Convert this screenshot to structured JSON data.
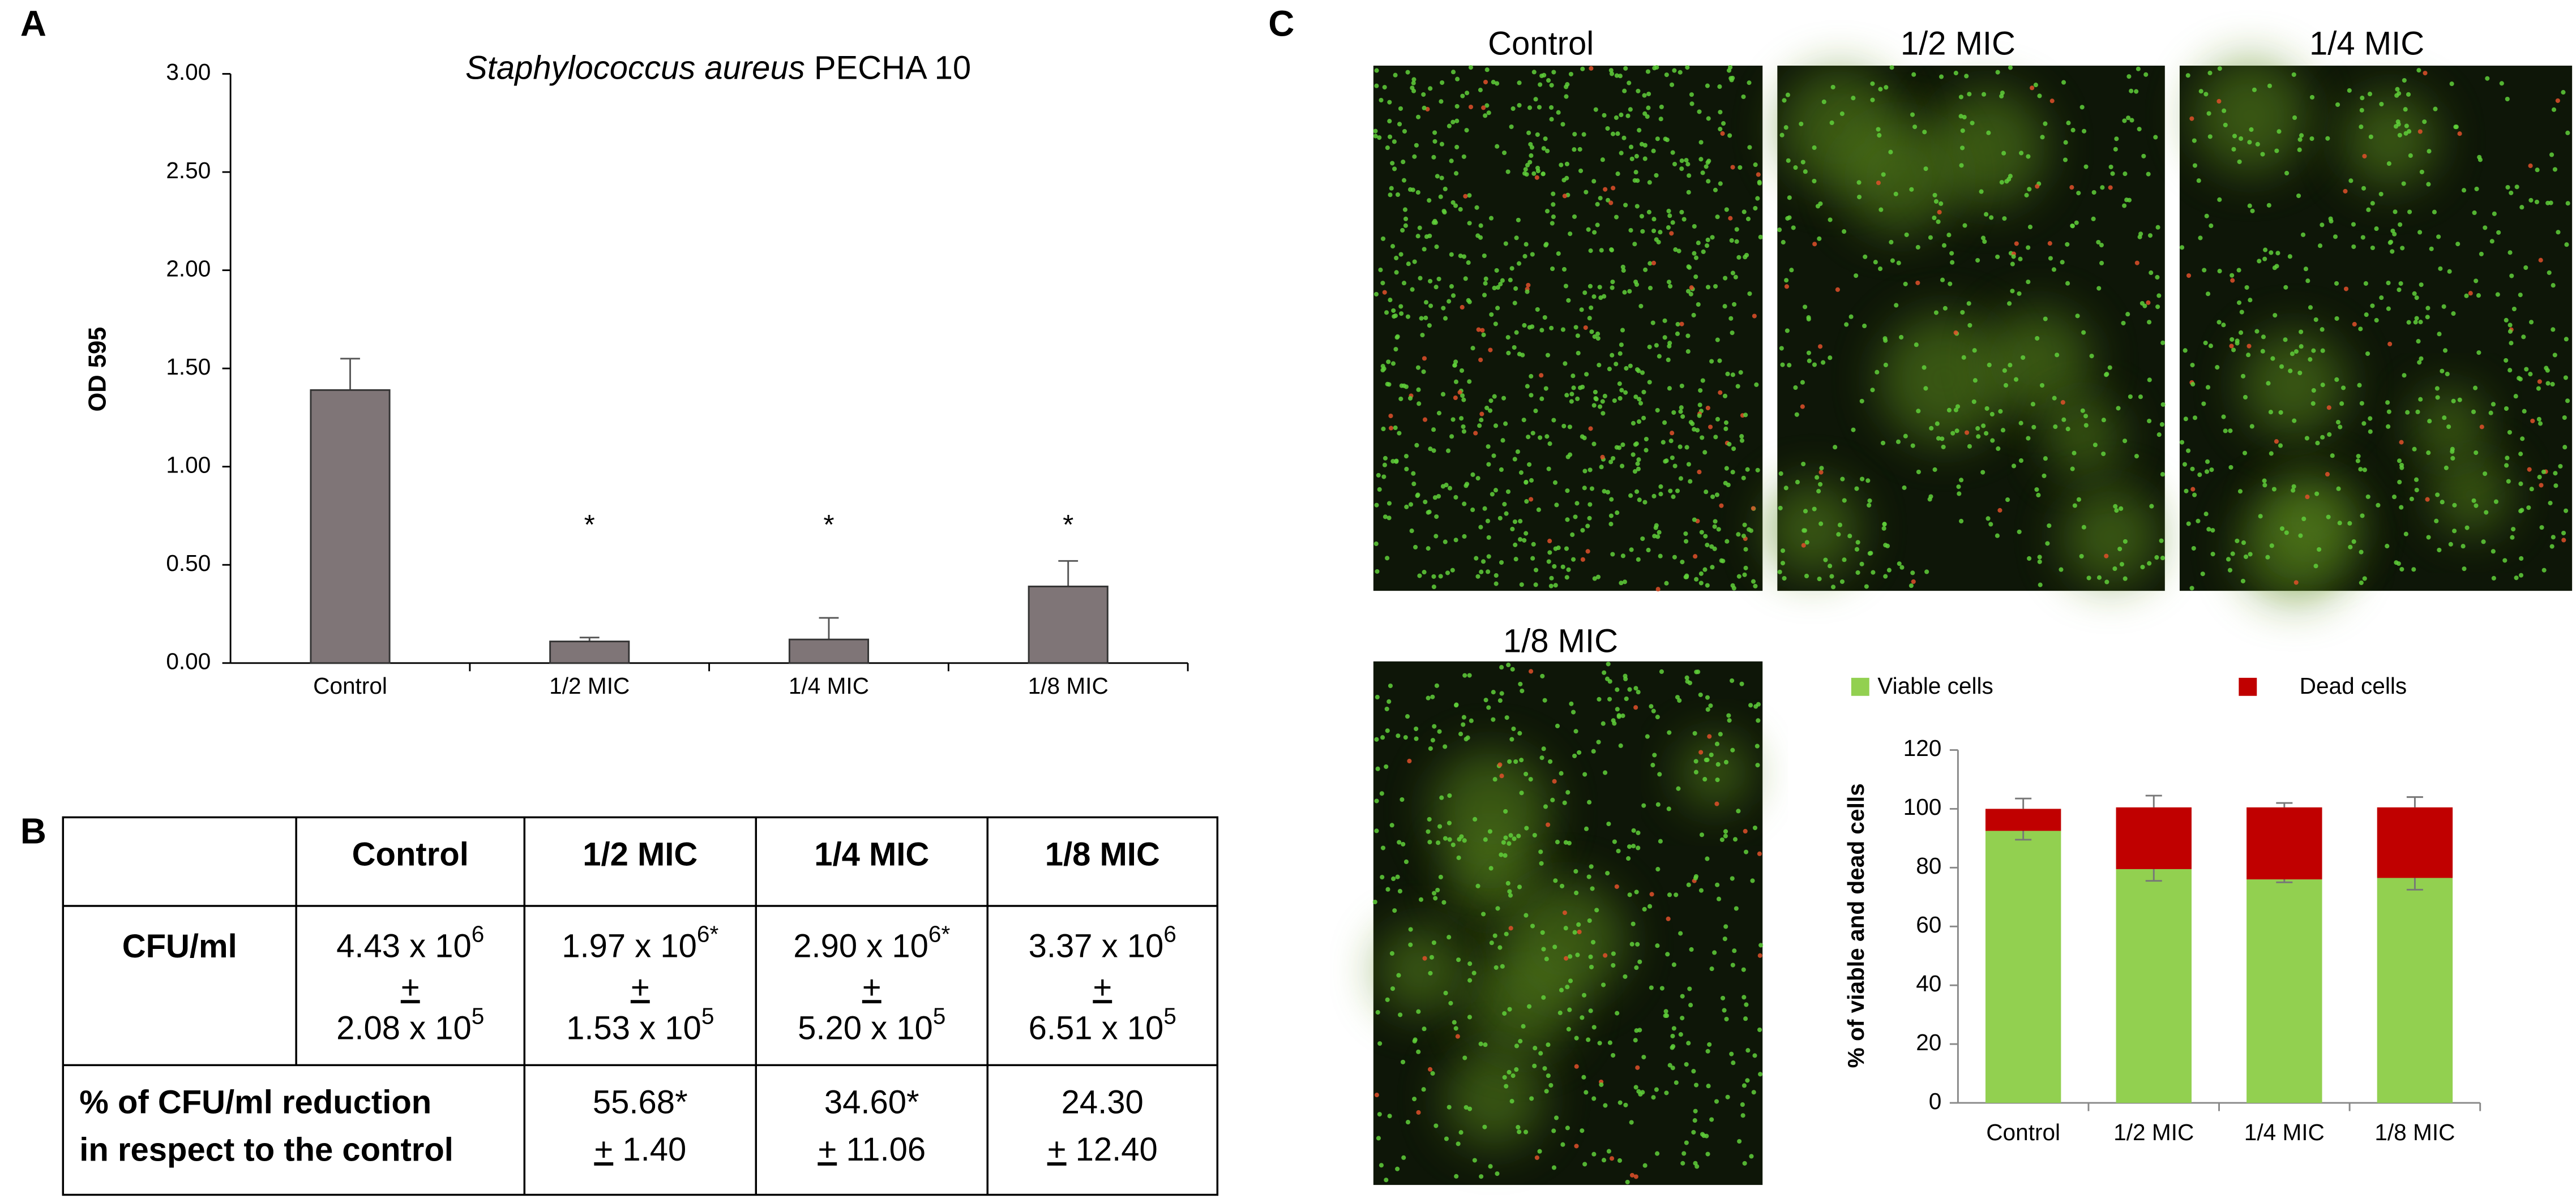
{
  "panels": [
    "A",
    "B",
    "C"
  ],
  "chart_data": [
    {
      "type": "bar",
      "title_parts": [
        "Staphylococcus aureus",
        "PECHA 10"
      ],
      "y_label": "OD 595",
      "categories": [
        "Control",
        "1/2 MIC",
        "1/4 MIC",
        "1/8 MIC"
      ],
      "values": [
        1.39,
        0.11,
        0.12,
        0.39
      ],
      "errors": [
        0.16,
        0.02,
        0.11,
        0.13
      ],
      "annotations": [
        null,
        "*",
        "*",
        "*"
      ],
      "color": "#7f7577",
      "ylim": [
        0,
        3
      ],
      "yticks": [
        {
          "value": 0,
          "label": "0.00"
        },
        {
          "value": 0.5,
          "label": "0.50"
        },
        {
          "value": 1,
          "label": "1.00"
        },
        {
          "value": 1.5,
          "label": "1.50"
        },
        {
          "value": 2,
          "label": "2.00"
        },
        {
          "value": 2.5,
          "label": "2.50"
        },
        {
          "value": 3,
          "label": "3.00"
        }
      ]
    },
    {
      "type": "stacked_bar",
      "y_label": "% of viable and dead cells",
      "categories": [
        "Control",
        "1/2 MIC",
        "1/4 MIC",
        "1/8 MIC"
      ],
      "series": [
        {
          "name": "Viable cells",
          "color": "#92d050",
          "values": [
            92.5,
            79.5,
            76,
            76.5
          ],
          "errors": [
            3,
            4,
            1,
            4
          ]
        },
        {
          "name": "Dead cells",
          "color": "#c00000",
          "values": [
            7.5,
            21,
            24.5,
            24
          ],
          "errors": [
            3.5,
            4,
            1.5,
            3.5
          ]
        }
      ],
      "ylim": [
        0,
        120
      ],
      "yticks": [
        0,
        20,
        40,
        60,
        80,
        100,
        120
      ]
    }
  ],
  "table": {
    "pm": "+",
    "header": [
      "Control",
      "1/2 MIC",
      "1/4 MIC",
      "1/8 MIC"
    ],
    "cfu_label": "CFU/ml",
    "cfu": [
      {
        "mean": "4.43 x 10",
        "mean_exp": "6",
        "sd": "2.08 x 10",
        "sd_exp": "5"
      },
      {
        "mean": "1.97 x 10",
        "mean_exp": "6*",
        "sd": "1.53 x 10",
        "sd_exp": "5"
      },
      {
        "mean": "2.90 x 10",
        "mean_exp": "6*",
        "sd": "5.20 x 10",
        "sd_exp": "5"
      },
      {
        "mean": "3.37 x 10",
        "mean_exp": "6",
        "sd": "6.51 x 10",
        "sd_exp": "5"
      }
    ],
    "reduction_label": [
      "% of CFU/ml reduction",
      "in respect to the control"
    ],
    "reduction": [
      {
        "value": "55.68*",
        "sd": "1.40"
      },
      {
        "value": "34.60*",
        "sd": "11.06"
      },
      {
        "value": "24.30",
        "sd": "12.40"
      }
    ]
  },
  "images": {
    "labels": [
      "Control",
      "1/2 MIC",
      "1/4 MIC",
      "1/8 MIC"
    ]
  }
}
